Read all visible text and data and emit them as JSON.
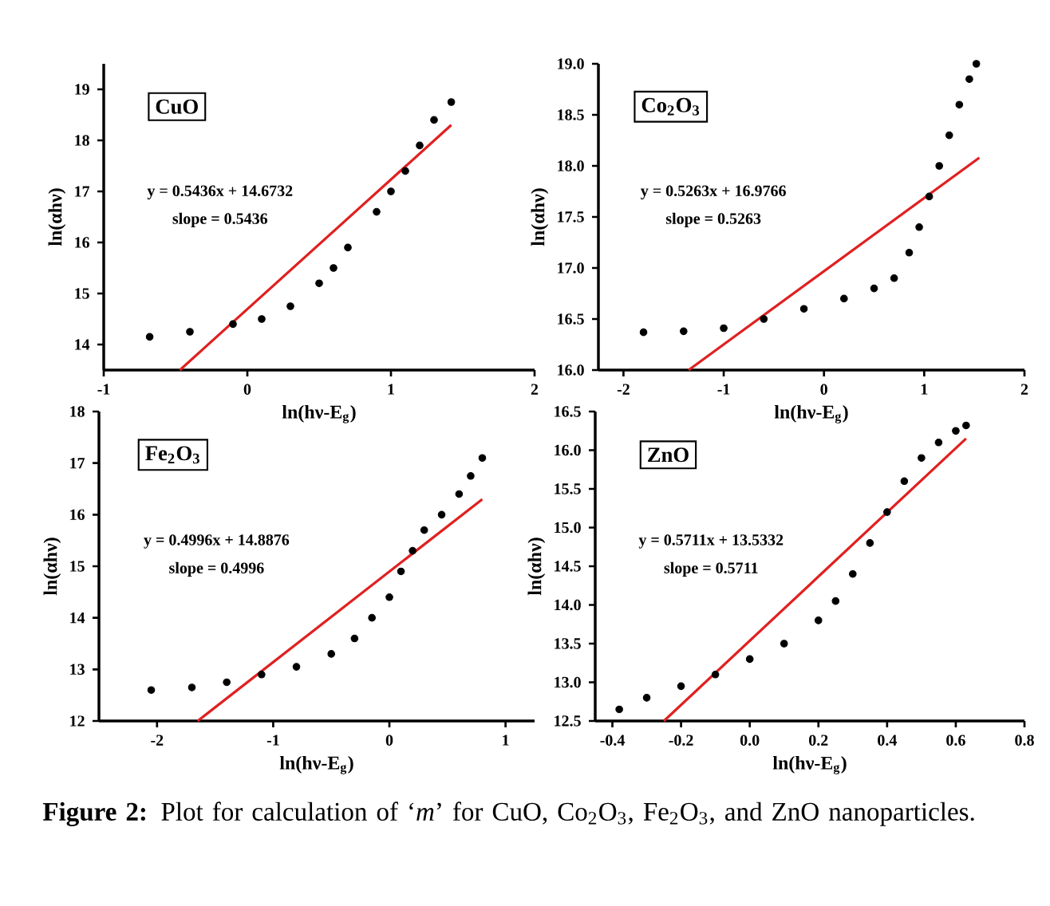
{
  "chart_data": [
    {
      "type": "scatter",
      "title": "CuO",
      "xlabel": "ln(hν-E$_{g}$)",
      "ylabel": "ln(αhν)",
      "xlim": [
        -1,
        2
      ],
      "ylim": [
        13.5,
        19.5
      ],
      "xticks": [
        -1,
        0,
        1,
        2
      ],
      "yticks": [
        14,
        15,
        16,
        17,
        18,
        19
      ],
      "series": [
        {
          "marker": "circle",
          "color": "#000000",
          "x": [
            -0.68,
            -0.4,
            -0.1,
            0.1,
            0.3,
            0.5,
            0.6,
            0.7,
            0.9,
            1.0,
            1.1,
            1.2,
            1.3,
            1.42
          ],
          "values": [
            14.15,
            14.25,
            14.4,
            14.5,
            14.75,
            15.2,
            15.5,
            15.9,
            16.6,
            17.0,
            17.4,
            17.9,
            18.4,
            18.75
          ]
        },
        {
          "type": "line",
          "color": "#e02020",
          "x": [
            -0.47,
            1.42
          ],
          "values": [
            13.5,
            18.3
          ]
        }
      ],
      "annotations": [
        "y = 0.5436x + 14.6732",
        "slope = 0.5436"
      ]
    },
    {
      "type": "scatter",
      "title": "Co$_{2}$O$_{3}$",
      "xlabel": "ln(hν-E$_{g}$)",
      "ylabel": "ln(αhν)",
      "xlim": [
        -2.25,
        2
      ],
      "ylim": [
        16,
        19
      ],
      "xticks": [
        -2,
        -1,
        0,
        1,
        2
      ],
      "yticks": [
        {
          "value": 16,
          "label": "16.0"
        },
        {
          "value": 16.5,
          "label": "16.5"
        },
        {
          "value": 17,
          "label": "17.0"
        },
        {
          "value": 17.5,
          "label": "17.5"
        },
        {
          "value": 18,
          "label": "18.0"
        },
        {
          "value": 18.5,
          "label": "18.5"
        },
        {
          "value": 19,
          "label": "19.0"
        }
      ],
      "series": [
        {
          "marker": "circle",
          "color": "#000000",
          "x": [
            -1.8,
            -1.4,
            -1.0,
            -0.6,
            -0.2,
            0.2,
            0.5,
            0.7,
            0.85,
            0.95,
            1.05,
            1.15,
            1.25,
            1.35,
            1.45,
            1.52
          ],
          "values": [
            16.37,
            16.38,
            16.41,
            16.5,
            16.6,
            16.7,
            16.8,
            16.9,
            17.15,
            17.4,
            17.7,
            18.0,
            18.3,
            18.6,
            18.85,
            19.0
          ]
        },
        {
          "type": "line",
          "color": "#e02020",
          "x": [
            -1.35,
            1.55
          ],
          "values": [
            16.0,
            18.08
          ]
        }
      ],
      "annotations": [
        "y = 0.5263x + 16.9766",
        "slope = 0.5263"
      ]
    },
    {
      "type": "scatter",
      "title": "Fe$_{2}$O$_{3}$",
      "xlabel": "ln(hν-E$_{g}$)",
      "ylabel": "ln(αhν)",
      "xlim": [
        -2.5,
        1.25
      ],
      "ylim": [
        12,
        18
      ],
      "xticks": [
        -2,
        -1,
        0,
        1
      ],
      "yticks": [
        12,
        13,
        14,
        15,
        16,
        17,
        18
      ],
      "series": [
        {
          "marker": "circle",
          "color": "#000000",
          "x": [
            -2.05,
            -1.7,
            -1.4,
            -1.1,
            -0.8,
            -0.5,
            -0.3,
            -0.15,
            0.0,
            0.1,
            0.2,
            0.3,
            0.45,
            0.6,
            0.7,
            0.8
          ],
          "values": [
            12.6,
            12.65,
            12.75,
            12.9,
            13.05,
            13.3,
            13.6,
            14.0,
            14.4,
            14.9,
            15.3,
            15.7,
            16.0,
            16.4,
            16.75,
            17.1
          ]
        },
        {
          "type": "line",
          "color": "#e02020",
          "x": [
            -1.65,
            0.8
          ],
          "values": [
            12.0,
            16.3
          ]
        }
      ],
      "annotations": [
        "y = 0.4996x + 14.8876",
        "slope = 0.4996"
      ]
    },
    {
      "type": "scatter",
      "title": "ZnO",
      "xlabel": "ln(hν-E$_{g}$)",
      "ylabel": "ln(αhν)",
      "xlim": [
        -0.45,
        0.8
      ],
      "ylim": [
        12.5,
        16.5
      ],
      "xticks": [
        -0.4,
        -0.2,
        {
          "value": 0,
          "label": "0.0"
        },
        0.2,
        0.4,
        0.6,
        0.8
      ],
      "yticks": [
        12.5,
        {
          "value": 13,
          "label": "13.0"
        },
        13.5,
        {
          "value": 14,
          "label": "14.0"
        },
        14.5,
        {
          "value": 15,
          "label": "15.0"
        },
        15.5,
        {
          "value": 16,
          "label": "16.0"
        },
        16.5
      ],
      "series": [
        {
          "marker": "circle",
          "color": "#000000",
          "x": [
            -0.38,
            -0.3,
            -0.2,
            -0.1,
            0.0,
            0.1,
            0.2,
            0.25,
            0.3,
            0.35,
            0.4,
            0.45,
            0.5,
            0.55,
            0.6,
            0.63
          ],
          "values": [
            12.65,
            12.8,
            12.95,
            13.1,
            13.3,
            13.5,
            13.8,
            14.05,
            14.4,
            14.8,
            15.2,
            15.6,
            15.9,
            16.1,
            16.25,
            16.32
          ]
        },
        {
          "type": "line",
          "color": "#e02020",
          "x": [
            -0.25,
            0.63
          ],
          "values": [
            12.5,
            16.15
          ]
        }
      ],
      "annotations": [
        "y = 0.5711x + 13.5332",
        "slope = 0.5711",
        "**Figure 2:** Plot for calculation of ‘*m*’ for CuO, Co$_{2}$O$_{3}$, Fe$_{2}$O$_{3}$, and ZnO nanoparticles."
      ]
    }
  ]
}
